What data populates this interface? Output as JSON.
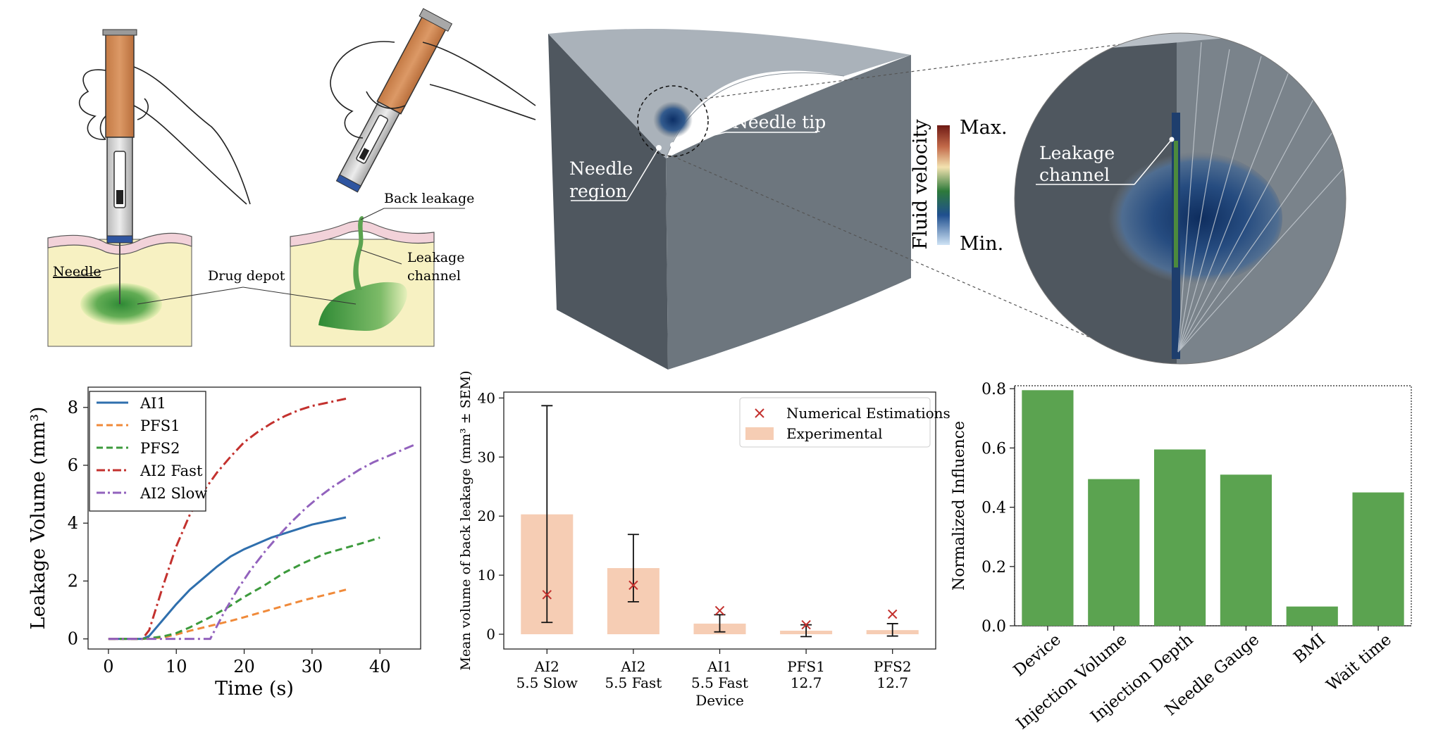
{
  "illustration": {
    "needle_label": "Needle",
    "drug_depot_label": "Drug depot",
    "back_leakage_label": "Back leakage",
    "leakage_channel_label_1": "Leakage",
    "leakage_channel_label_2": "channel"
  },
  "simulation": {
    "needle_tip_label": "Needle tip",
    "needle_region_label_1": "Needle",
    "needle_region_label_2": "region",
    "colorbar_label": "Fluid velocity",
    "colorbar_max": "Max.",
    "colorbar_min": "Min.",
    "zoom_leakage_label_1": "Leakage",
    "zoom_leakage_label_2": "channel"
  },
  "chart_data": [
    {
      "type": "line",
      "xlabel": "Time (s)",
      "ylabel": "Leakage Volume (mm³)",
      "xlim": [
        -3,
        46
      ],
      "ylim": [
        -0.35,
        8.7
      ],
      "xticks": [
        0,
        10,
        20,
        30,
        40
      ],
      "yticks": [
        0,
        2,
        4,
        6,
        8
      ],
      "legend_position": "top-left",
      "series": [
        {
          "name": "AI1",
          "color": "#2f6fad",
          "style": "solid",
          "x": [
            0,
            5,
            6,
            8,
            10,
            12,
            14,
            16,
            18,
            20,
            22,
            24,
            26,
            28,
            30,
            32,
            35
          ],
          "y": [
            0,
            0,
            0.1,
            0.65,
            1.2,
            1.7,
            2.1,
            2.5,
            2.85,
            3.1,
            3.3,
            3.5,
            3.65,
            3.8,
            3.95,
            4.05,
            4.2
          ]
        },
        {
          "name": "PFS1",
          "color": "#f08a3a",
          "style": "dash",
          "x": [
            0,
            5,
            8,
            10,
            12,
            15,
            18,
            20,
            23,
            26,
            29,
            32,
            35
          ],
          "y": [
            0,
            0,
            0.05,
            0.15,
            0.28,
            0.45,
            0.62,
            0.75,
            0.95,
            1.15,
            1.35,
            1.52,
            1.7
          ]
        },
        {
          "name": "PFS2",
          "color": "#3c9a3c",
          "style": "dash",
          "x": [
            0,
            5,
            8,
            10,
            12,
            15,
            18,
            20,
            23,
            26,
            29,
            32,
            35,
            38,
            40
          ],
          "y": [
            0,
            0,
            0.08,
            0.2,
            0.4,
            0.75,
            1.15,
            1.45,
            1.85,
            2.3,
            2.65,
            2.95,
            3.15,
            3.35,
            3.5
          ]
        },
        {
          "name": "AI2 Fast",
          "color": "#c3312e",
          "style": "dashdot",
          "x": [
            0,
            5,
            6,
            8,
            10,
            12,
            14,
            16,
            18,
            20,
            22,
            24,
            26,
            28,
            30,
            32,
            35
          ],
          "y": [
            0,
            0,
            0.3,
            1.8,
            3.2,
            4.3,
            5.1,
            5.75,
            6.3,
            6.8,
            7.15,
            7.45,
            7.7,
            7.9,
            8.05,
            8.15,
            8.3
          ]
        },
        {
          "name": "AI2 Slow",
          "color": "#9262bd",
          "style": "dashdot",
          "x": [
            0,
            15,
            17,
            19,
            21,
            23,
            25,
            27,
            29,
            31,
            33,
            35,
            37,
            39,
            41,
            43,
            45
          ],
          "y": [
            0,
            0,
            0.9,
            1.7,
            2.4,
            3.0,
            3.55,
            4.05,
            4.5,
            4.9,
            5.25,
            5.55,
            5.85,
            6.1,
            6.3,
            6.5,
            6.7
          ]
        }
      ]
    },
    {
      "type": "bar",
      "ylabel": "Mean volume of back leakage (mm³ ± SEM)",
      "xlabel": "Device",
      "ylim": [
        -2.5,
        41
      ],
      "yticks": [
        0,
        10,
        20,
        30,
        40
      ],
      "legend_position": "top-right",
      "categories": [
        [
          "AI2",
          "5.5 Slow"
        ],
        [
          "AI2",
          "5.5 Fast"
        ],
        [
          "AI1",
          "5.5 Fast"
        ],
        [
          "PFS1",
          "12.7"
        ],
        [
          "PFS2",
          "12.7"
        ]
      ],
      "series": [
        {
          "name": "Experimental",
          "color": "#f6cdb4",
          "values": [
            20.3,
            11.2,
            1.8,
            0.6,
            0.7
          ],
          "error_low": [
            2.0,
            5.5,
            0.4,
            -0.4,
            -0.3
          ],
          "error_high": [
            38.7,
            16.9,
            3.3,
            1.6,
            1.8
          ]
        },
        {
          "name": "Numerical Estimations",
          "color": "#c3312e",
          "marker": "x",
          "values": [
            6.7,
            8.3,
            4.0,
            1.6,
            3.4
          ]
        }
      ]
    },
    {
      "type": "bar",
      "ylabel": "Normalized Influence",
      "ylim": [
        0,
        0.81
      ],
      "yticks": [
        "0.0",
        "0.2",
        "0.4",
        "0.6",
        "0.8"
      ],
      "color": "#5ba350",
      "categories": [
        "Device",
        "Injection Volume",
        "Injection Depth",
        "Needle Gauge",
        "BMI",
        "Wait time"
      ],
      "values": [
        0.795,
        0.495,
        0.595,
        0.51,
        0.065,
        0.45
      ]
    }
  ]
}
